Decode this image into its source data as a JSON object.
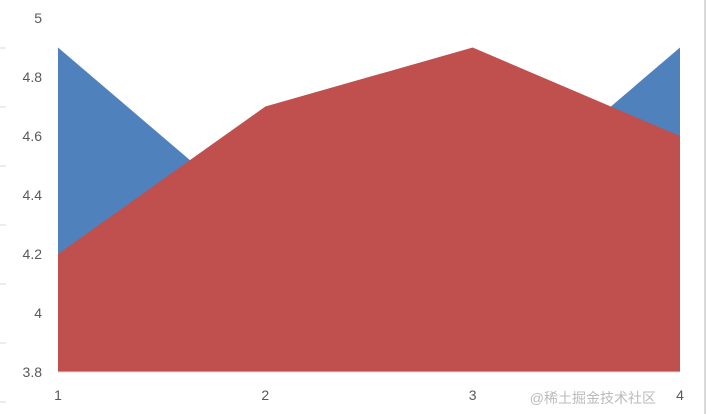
{
  "chart_data": {
    "type": "area",
    "categories": [
      "1",
      "2",
      "3",
      "4"
    ],
    "series": [
      {
        "values": [
          4.9,
          4.3,
          4.3,
          4.9
        ],
        "color": "#4f81bd"
      },
      {
        "values": [
          4.2,
          4.7,
          4.9,
          4.6
        ],
        "color": "#c0504d"
      }
    ],
    "ylim": [
      3.8,
      5
    ],
    "yticks": [
      "3.8",
      "4",
      "4.2",
      "4.4",
      "4.6",
      "4.8",
      "5"
    ],
    "grid": false
  },
  "watermark": "@稀土掘金技术社区"
}
